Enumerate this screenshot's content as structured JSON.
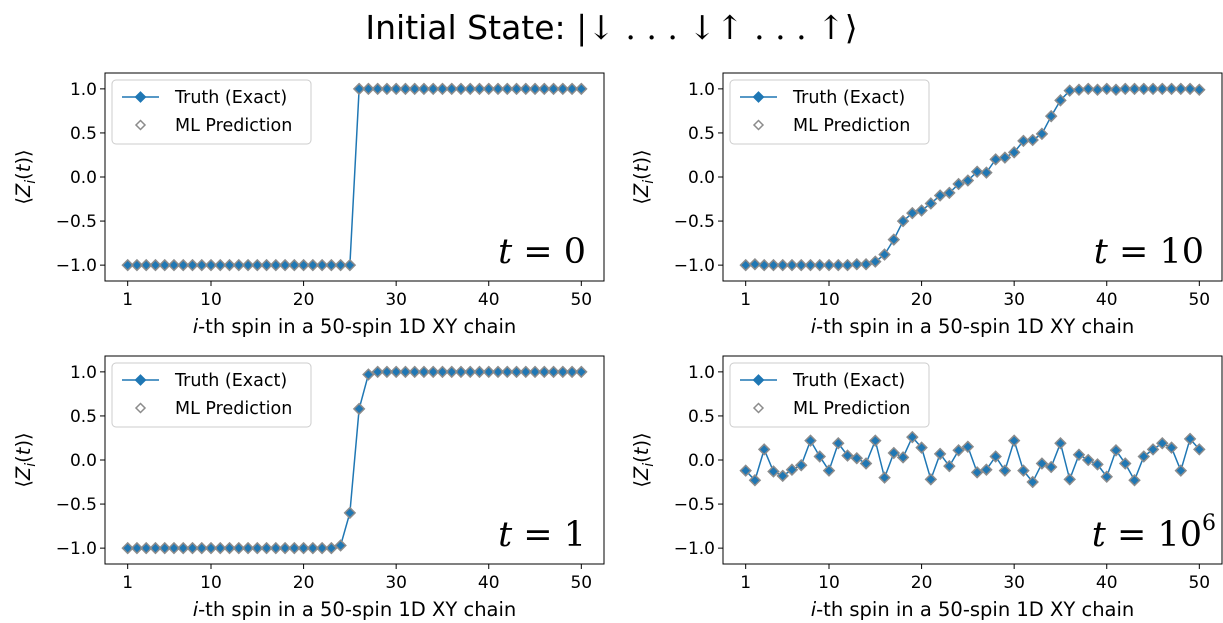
{
  "figure": {
    "title_prefix": "Initial State:",
    "title_state": "|↓ . . . ↓↑ . . . ↑⟩"
  },
  "colors": {
    "line": "#1f77b4",
    "prediction": "#8c8c8c"
  },
  "chart_data": [
    {
      "type": "line",
      "panel": "top-left",
      "annotation": {
        "base": "t = ",
        "value": "0",
        "exponent": ""
      },
      "xlabel": "i-th spin in a 50-spin 1D XY chain",
      "ylabel": "⟨Z_i(t)⟩",
      "xticks": [
        1,
        10,
        20,
        30,
        40,
        50
      ],
      "yticks": [
        -1.0,
        -0.5,
        0.0,
        0.5,
        1.0
      ],
      "ylim": [
        -1.18,
        1.18
      ],
      "legend": [
        "Truth (Exact)",
        "ML Prediction"
      ],
      "legend_position": "upper-left",
      "x": [
        1,
        2,
        3,
        4,
        5,
        6,
        7,
        8,
        9,
        10,
        11,
        12,
        13,
        14,
        15,
        16,
        17,
        18,
        19,
        20,
        21,
        22,
        23,
        24,
        25,
        26,
        27,
        28,
        29,
        30,
        31,
        32,
        33,
        34,
        35,
        36,
        37,
        38,
        39,
        40,
        41,
        42,
        43,
        44,
        45,
        46,
        47,
        48,
        49,
        50
      ],
      "series": [
        {
          "name": "Truth (Exact)",
          "values": [
            -1,
            -1,
            -1,
            -1,
            -1,
            -1,
            -1,
            -1,
            -1,
            -1,
            -1,
            -1,
            -1,
            -1,
            -1,
            -1,
            -1,
            -1,
            -1,
            -1,
            -1,
            -1,
            -1,
            -1,
            -1,
            1,
            1,
            1,
            1,
            1,
            1,
            1,
            1,
            1,
            1,
            1,
            1,
            1,
            1,
            1,
            1,
            1,
            1,
            1,
            1,
            1,
            1,
            1,
            1,
            1
          ]
        },
        {
          "name": "ML Prediction",
          "values": [
            -1,
            -1,
            -1,
            -1,
            -1,
            -1,
            -1,
            -1,
            -1,
            -1,
            -1,
            -1,
            -1,
            -1,
            -1,
            -1,
            -1,
            -1,
            -1,
            -1,
            -1,
            -1,
            -1,
            -1,
            -1,
            1,
            1,
            1,
            1,
            1,
            1,
            1,
            1,
            1,
            1,
            1,
            1,
            1,
            1,
            1,
            1,
            1,
            1,
            1,
            1,
            1,
            1,
            1,
            1,
            1
          ]
        }
      ]
    },
    {
      "type": "line",
      "panel": "top-right",
      "annotation": {
        "base": "t = ",
        "value": "10",
        "exponent": ""
      },
      "xlabel": "i-th spin in a 50-spin 1D XY chain",
      "ylabel": "⟨Z_i(t)⟩",
      "xticks": [
        1,
        10,
        20,
        30,
        40,
        50
      ],
      "yticks": [
        -1.0,
        -0.5,
        0.0,
        0.5,
        1.0
      ],
      "ylim": [
        -1.18,
        1.18
      ],
      "legend": [
        "Truth (Exact)",
        "ML Prediction"
      ],
      "legend_position": "upper-left",
      "x": [
        1,
        2,
        3,
        4,
        5,
        6,
        7,
        8,
        9,
        10,
        11,
        12,
        13,
        14,
        15,
        16,
        17,
        18,
        19,
        20,
        21,
        22,
        23,
        24,
        25,
        26,
        27,
        28,
        29,
        30,
        31,
        32,
        33,
        34,
        35,
        36,
        37,
        38,
        39,
        40,
        41,
        42,
        43,
        44,
        45,
        46,
        47,
        48,
        49,
        50
      ],
      "series": [
        {
          "name": "Truth (Exact)",
          "values": [
            -1,
            -0.99,
            -1,
            -1,
            -1,
            -1,
            -1,
            -1,
            -1,
            -1,
            -1,
            -1,
            -0.99,
            -0.99,
            -0.96,
            -0.88,
            -0.71,
            -0.5,
            -0.41,
            -0.38,
            -0.3,
            -0.21,
            -0.18,
            -0.08,
            -0.04,
            0.06,
            0.05,
            0.2,
            0.22,
            0.28,
            0.41,
            0.42,
            0.49,
            0.69,
            0.87,
            0.98,
            0.99,
            1,
            0.99,
            1,
            0.99,
            1,
            1,
            1,
            1,
            1,
            1,
            1,
            1,
            0.99
          ]
        },
        {
          "name": "ML Prediction",
          "values": [
            -1,
            -0.99,
            -1,
            -1,
            -1,
            -1,
            -1,
            -1,
            -1,
            -1,
            -1,
            -1,
            -0.99,
            -0.99,
            -0.96,
            -0.88,
            -0.71,
            -0.5,
            -0.41,
            -0.38,
            -0.3,
            -0.21,
            -0.18,
            -0.08,
            -0.04,
            0.06,
            0.05,
            0.2,
            0.22,
            0.28,
            0.41,
            0.42,
            0.49,
            0.69,
            0.87,
            0.98,
            0.99,
            1,
            0.99,
            1,
            0.99,
            1,
            1,
            1,
            1,
            1,
            1,
            1,
            1,
            0.99
          ]
        }
      ]
    },
    {
      "type": "line",
      "panel": "bottom-left",
      "annotation": {
        "base": "t = ",
        "value": "1",
        "exponent": ""
      },
      "xlabel": "i-th spin in a 50-spin 1D XY chain",
      "ylabel": "⟨Z_i(t)⟩",
      "xticks": [
        1,
        10,
        20,
        30,
        40,
        50
      ],
      "yticks": [
        -1.0,
        -0.5,
        0.0,
        0.5,
        1.0
      ],
      "ylim": [
        -1.18,
        1.18
      ],
      "legend": [
        "Truth (Exact)",
        "ML Prediction"
      ],
      "legend_position": "upper-left",
      "x": [
        1,
        2,
        3,
        4,
        5,
        6,
        7,
        8,
        9,
        10,
        11,
        12,
        13,
        14,
        15,
        16,
        17,
        18,
        19,
        20,
        21,
        22,
        23,
        24,
        25,
        26,
        27,
        28,
        29,
        30,
        31,
        32,
        33,
        34,
        35,
        36,
        37,
        38,
        39,
        40,
        41,
        42,
        43,
        44,
        45,
        46,
        47,
        48,
        49,
        50
      ],
      "series": [
        {
          "name": "Truth (Exact)",
          "values": [
            -1,
            -1,
            -1,
            -1,
            -1,
            -1,
            -1,
            -1,
            -1,
            -1,
            -1,
            -1,
            -1,
            -1,
            -1,
            -1,
            -1,
            -1,
            -1,
            -1,
            -1,
            -1,
            -1,
            -0.97,
            -0.6,
            0.58,
            0.97,
            1,
            1,
            1,
            1,
            1,
            1,
            1,
            1,
            1,
            1,
            1,
            1,
            1,
            1,
            1,
            1,
            1,
            1,
            1,
            1,
            1,
            1,
            1
          ]
        },
        {
          "name": "ML Prediction",
          "values": [
            -1,
            -1,
            -1,
            -1,
            -1,
            -1,
            -1,
            -1,
            -1,
            -1,
            -1,
            -1,
            -1,
            -1,
            -1,
            -1,
            -1,
            -1,
            -1,
            -1,
            -1,
            -1,
            -1,
            -0.97,
            -0.6,
            0.58,
            0.97,
            1,
            1,
            1,
            1,
            1,
            1,
            1,
            1,
            1,
            1,
            1,
            1,
            1,
            1,
            1,
            1,
            1,
            1,
            1,
            1,
            1,
            1,
            1
          ]
        }
      ]
    },
    {
      "type": "line",
      "panel": "bottom-right",
      "annotation": {
        "base": "t = ",
        "value": "10",
        "exponent": "6"
      },
      "xlabel": "i-th spin in a 50-spin 1D XY chain",
      "ylabel": "⟨Z_i(t)⟩",
      "xticks": [
        1,
        10,
        20,
        30,
        40,
        50
      ],
      "yticks": [
        -1.0,
        -0.5,
        0.0,
        0.5,
        1.0
      ],
      "ylim": [
        -1.18,
        1.18
      ],
      "legend": [
        "Truth (Exact)",
        "ML Prediction"
      ],
      "legend_position": "upper-left",
      "x": [
        1,
        2,
        3,
        4,
        5,
        6,
        7,
        8,
        9,
        10,
        11,
        12,
        13,
        14,
        15,
        16,
        17,
        18,
        19,
        20,
        21,
        22,
        23,
        24,
        25,
        26,
        27,
        28,
        29,
        30,
        31,
        32,
        33,
        34,
        35,
        36,
        37,
        38,
        39,
        40,
        41,
        42,
        43,
        44,
        45,
        46,
        47,
        48,
        49,
        50
      ],
      "series": [
        {
          "name": "Truth (Exact)",
          "values": [
            -0.12,
            -0.23,
            0.12,
            -0.13,
            -0.18,
            -0.11,
            -0.06,
            0.22,
            0.04,
            -0.12,
            0.19,
            0.05,
            0.02,
            -0.04,
            0.22,
            -0.2,
            0.08,
            0.03,
            0.26,
            0.14,
            -0.22,
            0.07,
            -0.07,
            0.11,
            0.15,
            -0.14,
            -0.11,
            0.04,
            -0.12,
            0.22,
            -0.12,
            -0.25,
            -0.04,
            -0.08,
            0.19,
            -0.22,
            0.06,
            0,
            -0.05,
            -0.19,
            0.11,
            -0.04,
            -0.23,
            0.04,
            0.12,
            0.19,
            0.14,
            -0.12,
            0.24,
            0.12
          ]
        },
        {
          "name": "ML Prediction",
          "values": [
            -0.12,
            -0.23,
            0.12,
            -0.13,
            -0.18,
            -0.11,
            -0.06,
            0.22,
            0.04,
            -0.12,
            0.19,
            0.05,
            0.02,
            -0.04,
            0.22,
            -0.2,
            0.08,
            0.03,
            0.26,
            0.14,
            -0.22,
            0.07,
            -0.07,
            0.11,
            0.15,
            -0.14,
            -0.11,
            0.04,
            -0.12,
            0.22,
            -0.12,
            -0.25,
            -0.04,
            -0.08,
            0.19,
            -0.22,
            0.06,
            0,
            -0.05,
            -0.19,
            0.11,
            -0.04,
            -0.23,
            0.04,
            0.12,
            0.19,
            0.14,
            -0.12,
            0.24,
            0.12
          ]
        }
      ]
    }
  ]
}
